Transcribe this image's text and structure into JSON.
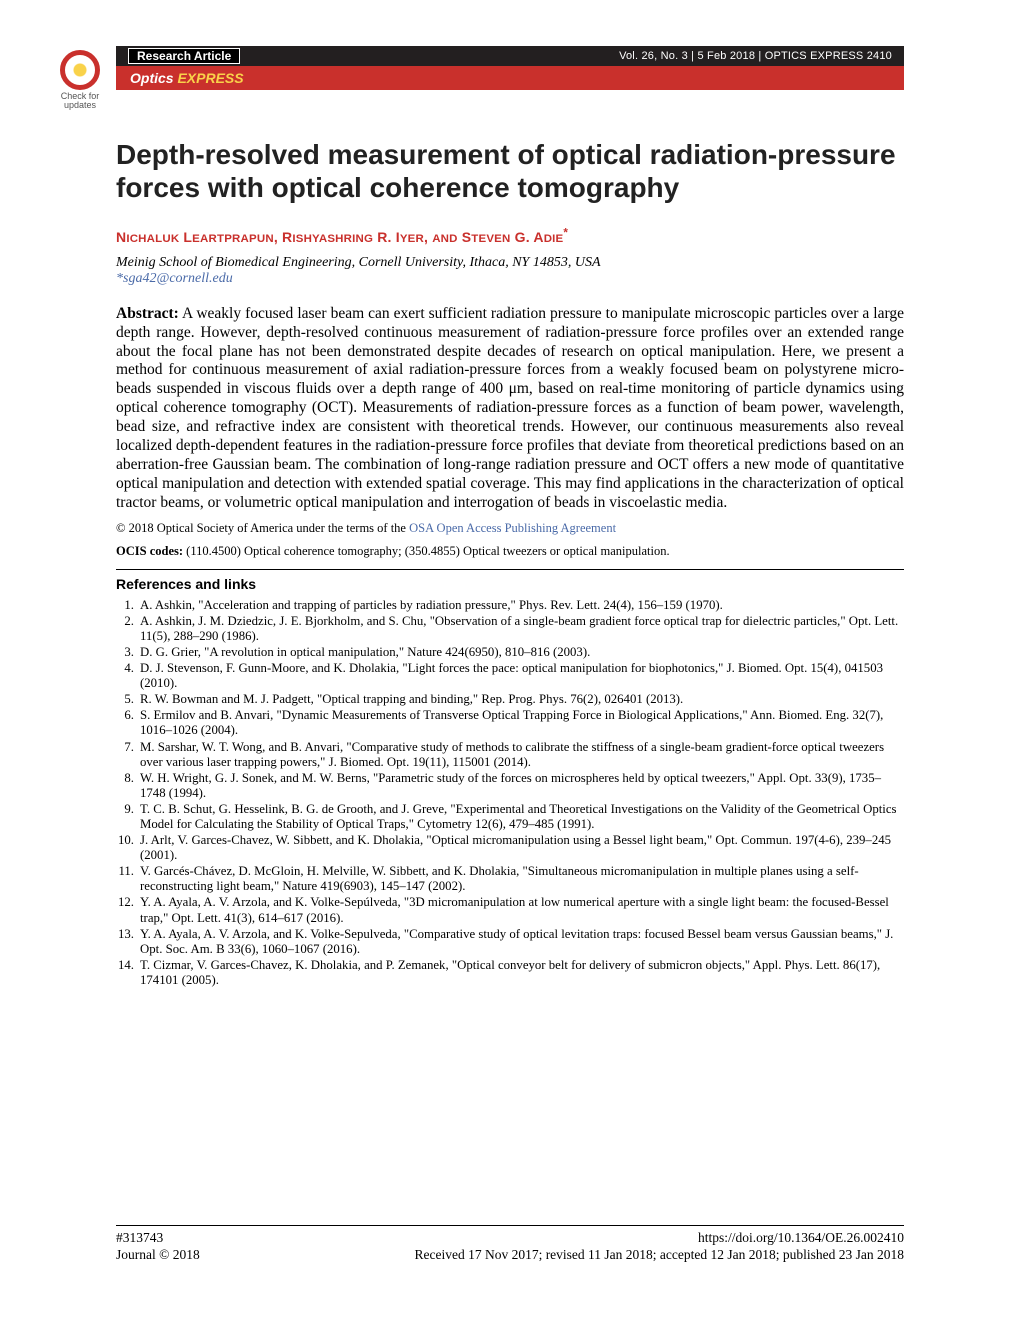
{
  "badge": {
    "line1": "Check for",
    "line2": "updates"
  },
  "header": {
    "research_article": "Research Article",
    "vol_line": "Vol. 26, No. 3 | 5 Feb 2018 | OPTICS EXPRESS 2410",
    "brand_prefix": "Optics ",
    "brand_suffix": "EXPRESS"
  },
  "title": "Depth-resolved measurement of optical radiation-pressure forces with optical coherence tomography",
  "authors_html": "N<small>ICHALUK</small> L<small>EARTPRAPUN</small>, R<small>ISHYASHRING</small> R. I<small>YER</small>, <small>AND</small> S<small>TEVEN</small> G. A<small>DIE</small><sup>*</sup>",
  "authors_text": "NICHALUK LEARTPRAPUN, RISHYASHRING R. IYER, AND STEVEN G. ADIE*",
  "affiliation": "Meinig School of Biomedical Engineering, Cornell University, Ithaca, NY 14853, USA",
  "email": "*sga42@cornell.edu",
  "abstract_label": "Abstract:",
  "abstract": " A weakly focused laser beam can exert sufficient radiation pressure to manipulate microscopic particles over a large depth range. However, depth-resolved continuous measurement of radiation-pressure force profiles over an extended range about the focal plane has not been demonstrated despite decades of research on optical manipulation. Here, we present a method for continuous measurement of axial radiation-pressure forces from a weakly focused beam on polystyrene micro-beads suspended in viscous fluids over a depth range of 400 μm, based on real-time monitoring of particle dynamics using optical coherence tomography (OCT). Measurements of radiation-pressure forces as a function of beam power, wavelength, bead size, and refractive index are consistent with theoretical trends. However, our continuous measurements also reveal localized depth-dependent features in the radiation-pressure force profiles that deviate from theoretical predictions based on an aberration-free Gaussian beam. The combination of long-range radiation pressure and OCT offers a new mode of quantitative optical manipulation and detection with extended spatial coverage. This may find applications in the characterization of optical tractor beams, or volumetric optical manipulation and interrogation of beads in viscoelastic media.",
  "copyright_prefix": "© 2018 Optical Society of America under the terms of the ",
  "copyright_link": "OSA Open Access Publishing Agreement",
  "ocis_label": "OCIS codes:",
  "ocis": " (110.4500) Optical coherence tomography; (350.4855) Optical tweezers or optical manipulation.",
  "refs_heading": "References and links",
  "refs": [
    "A. Ashkin, \"Acceleration and trapping of particles by radiation pressure,\" Phys. Rev. Lett. 24(4), 156–159 (1970).",
    "A. Ashkin, J. M. Dziedzic, J. E. Bjorkholm, and S. Chu, \"Observation of a single-beam gradient force optical trap for dielectric particles,\" Opt. Lett. 11(5), 288–290 (1986).",
    "D. G. Grier, \"A revolution in optical manipulation,\" Nature 424(6950), 810–816 (2003).",
    "D. J. Stevenson, F. Gunn-Moore, and K. Dholakia, \"Light forces the pace: optical manipulation for biophotonics,\" J. Biomed. Opt. 15(4), 041503 (2010).",
    "R. W. Bowman and M. J. Padgett, \"Optical trapping and binding,\" Rep. Prog. Phys. 76(2), 026401 (2013).",
    "S. Ermilov and B. Anvari, \"Dynamic Measurements of Transverse Optical Trapping Force in Biological Applications,\" Ann. Biomed. Eng. 32(7), 1016–1026 (2004).",
    "M. Sarshar, W. T. Wong, and B. Anvari, \"Comparative study of methods to calibrate the stiffness of a single-beam gradient-force optical tweezers over various laser trapping powers,\" J. Biomed. Opt. 19(11), 115001 (2014).",
    "W. H. Wright, G. J. Sonek, and M. W. Berns, \"Parametric study of the forces on microspheres held by optical tweezers,\" Appl. Opt. 33(9), 1735–1748 (1994).",
    "T. C. B. Schut, G. Hesselink, B. G. de Grooth, and J. Greve, \"Experimental and Theoretical Investigations on the Validity of the Geometrical Optics Model for Calculating the Stability of Optical Traps,\" Cytometry 12(6), 479–485 (1991).",
    "J. Arlt, V. Garces-Chavez, W. Sibbett, and K. Dholakia, \"Optical micromanipulation using a Bessel light beam,\" Opt. Commun. 197(4-6), 239–245 (2001).",
    "V. Garcés-Chávez, D. McGloin, H. Melville, W. Sibbett, and K. Dholakia, \"Simultaneous micromanipulation in multiple planes using a self-reconstructing light beam,\" Nature 419(6903), 145–147 (2002).",
    "Y. A. Ayala, A. V. Arzola, and K. Volke-Sepúlveda, \"3D micromanipulation at low numerical aperture with a single light beam: the focused-Bessel trap,\" Opt. Lett. 41(3), 614–617 (2016).",
    "Y. A. Ayala, A. V. Arzola, and K. Volke-Sepulveda, \"Comparative study of optical levitation traps: focused Bessel beam versus Gaussian beams,\" J. Opt. Soc. Am. B 33(6), 1060–1067 (2016).",
    "T. Cizmar, V. Garces-Chavez, K. Dholakia, and P. Zemanek, \"Optical conveyor belt for delivery of submicron objects,\" Appl. Phys. Lett. 86(17), 174101 (2005)."
  ],
  "footer": {
    "id": "#313743",
    "doi": "https://doi.org/10.1364/OE.26.002410",
    "journal": "Journal © 2018",
    "dates": "Received 17 Nov 2017; revised 11 Jan 2018; accepted 12 Jan 2018; published 23 Jan 2018"
  }
}
